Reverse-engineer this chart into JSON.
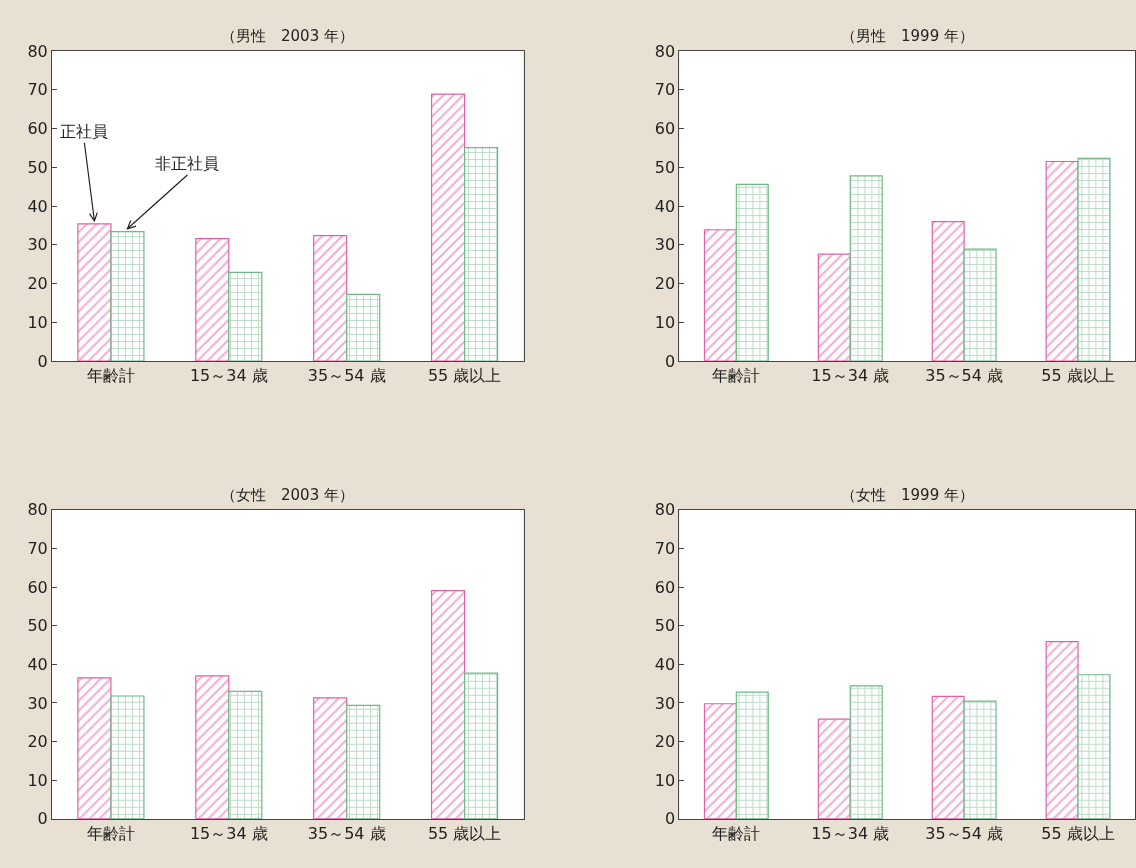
{
  "chart_data": [
    {
      "type": "bar",
      "title": "（男性　2003 年）",
      "categories": [
        "年齢計",
        "15～34 歳",
        "35～54 歳",
        "55 歳以上"
      ],
      "series": [
        {
          "name": "正社員",
          "color": "#e060a8",
          "values": [
            35.4,
            31.6,
            32.4,
            68.9
          ]
        },
        {
          "name": "非正社員",
          "color": "#70b888",
          "values": [
            33.4,
            22.9,
            17.2,
            55.1
          ]
        }
      ],
      "ylim": [
        0,
        80
      ],
      "yticks": [
        0,
        10,
        20,
        30,
        40,
        50,
        60,
        70,
        80
      ],
      "legend": false,
      "grid": false
    },
    {
      "type": "bar",
      "title": "（男性　1999 年）",
      "categories": [
        "年齢計",
        "15～34 歳",
        "35～54 歳",
        "55 歳以上"
      ],
      "series": [
        {
          "color": "#e060a8",
          "values": [
            33.9,
            27.6,
            36.0,
            51.5
          ]
        },
        {
          "color": "#70b888",
          "values": [
            45.6,
            47.8,
            28.9,
            52.3
          ]
        }
      ],
      "ylim": [
        0,
        80
      ],
      "yticks": [
        0,
        10,
        20,
        30,
        40,
        50,
        60,
        70,
        80
      ],
      "legend": false,
      "grid": false
    },
    {
      "type": "bar",
      "title": "（女性　2003 年）",
      "categories": [
        "年齢計",
        "15～34 歳",
        "35～54 歳",
        "55 歳以上"
      ],
      "series": [
        {
          "color": "#e060a8",
          "values": [
            36.5,
            37.0,
            31.3,
            59.1
          ]
        },
        {
          "color": "#70b888",
          "values": [
            31.8,
            33.0,
            29.4,
            37.7
          ]
        }
      ],
      "ylim": [
        0,
        80
      ],
      "yticks": [
        0,
        10,
        20,
        30,
        40,
        50,
        60,
        70,
        80
      ],
      "legend": false,
      "grid": false
    },
    {
      "type": "bar",
      "title": "（女性　1999 年）",
      "categories": [
        "年齢計",
        "15～34 歳",
        "35～54 歳",
        "55 歳以上"
      ],
      "series": [
        {
          "color": "#e060a8",
          "values": [
            29.8,
            25.8,
            31.7,
            45.9
          ]
        },
        {
          "color": "#70b888",
          "values": [
            32.8,
            34.4,
            30.5,
            37.3
          ]
        }
      ],
      "ylim": [
        0,
        80
      ],
      "yticks": [
        0,
        10,
        20,
        30,
        40,
        50,
        60,
        70,
        80
      ],
      "legend": false,
      "grid": false
    }
  ]
}
